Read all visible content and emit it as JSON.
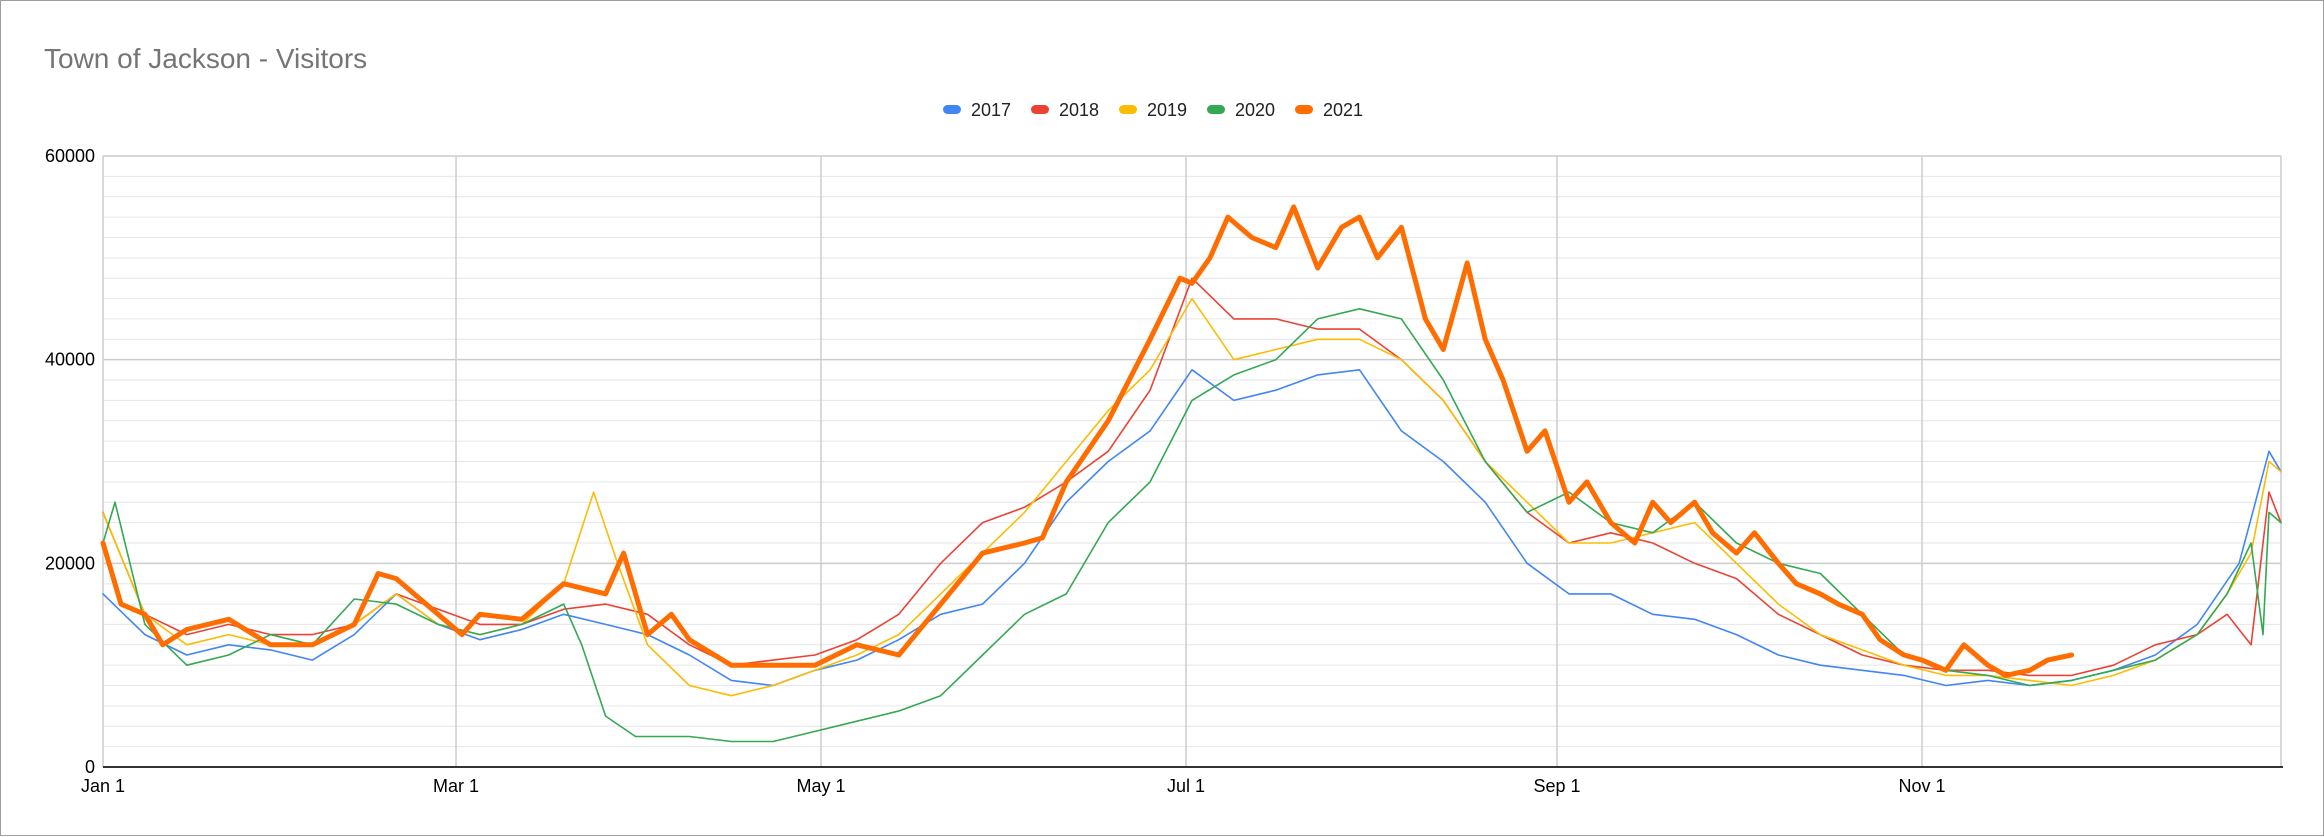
{
  "chart_data": {
    "type": "line",
    "title": "Town of Jackson - Visitors",
    "xlabel": "",
    "ylabel": "",
    "x_ticks": [
      "Jan 1",
      "Mar 1",
      "May 1",
      "Jul 1",
      "Sep 1",
      "Nov 1"
    ],
    "y_ticks": [
      "0",
      "20000",
      "40000",
      "60000"
    ],
    "ylim": [
      0,
      60000
    ],
    "xlim_day_of_year": [
      1,
      365
    ],
    "grid": true,
    "legend_position": "top",
    "series": [
      {
        "name": "2017",
        "color": "#4285f4",
        "stroke_width": 1.6,
        "points": [
          [
            1,
            17000
          ],
          [
            8,
            13000
          ],
          [
            15,
            11000
          ],
          [
            22,
            12000
          ],
          [
            29,
            11500
          ],
          [
            36,
            10500
          ],
          [
            43,
            13000
          ],
          [
            50,
            17000
          ],
          [
            57,
            14000
          ],
          [
            64,
            12500
          ],
          [
            71,
            13500
          ],
          [
            78,
            15000
          ],
          [
            85,
            14000
          ],
          [
            92,
            13000
          ],
          [
            99,
            11000
          ],
          [
            106,
            8500
          ],
          [
            113,
            8000
          ],
          [
            120,
            9500
          ],
          [
            127,
            10500
          ],
          [
            134,
            12500
          ],
          [
            141,
            15000
          ],
          [
            148,
            16000
          ],
          [
            155,
            20000
          ],
          [
            162,
            26000
          ],
          [
            169,
            30000
          ],
          [
            176,
            33000
          ],
          [
            183,
            39000
          ],
          [
            190,
            36000
          ],
          [
            197,
            37000
          ],
          [
            204,
            38500
          ],
          [
            211,
            39000
          ],
          [
            218,
            33000
          ],
          [
            225,
            30000
          ],
          [
            232,
            26000
          ],
          [
            239,
            20000
          ],
          [
            246,
            17000
          ],
          [
            253,
            17000
          ],
          [
            260,
            15000
          ],
          [
            267,
            14500
          ],
          [
            274,
            13000
          ],
          [
            281,
            11000
          ],
          [
            288,
            10000
          ],
          [
            295,
            9500
          ],
          [
            302,
            9000
          ],
          [
            309,
            8000
          ],
          [
            316,
            8500
          ],
          [
            323,
            8000
          ],
          [
            330,
            8500
          ],
          [
            337,
            9500
          ],
          [
            344,
            11000
          ],
          [
            351,
            14000
          ],
          [
            358,
            20000
          ],
          [
            363,
            31000
          ],
          [
            365,
            29000
          ]
        ]
      },
      {
        "name": "2018",
        "color": "#ea4335",
        "stroke_width": 1.6,
        "points": [
          [
            1,
            25000
          ],
          [
            8,
            15000
          ],
          [
            15,
            13000
          ],
          [
            22,
            14000
          ],
          [
            29,
            13000
          ],
          [
            36,
            13000
          ],
          [
            43,
            14000
          ],
          [
            50,
            17000
          ],
          [
            57,
            15500
          ],
          [
            64,
            14000
          ],
          [
            71,
            14000
          ],
          [
            78,
            15500
          ],
          [
            85,
            16000
          ],
          [
            92,
            15000
          ],
          [
            99,
            12000
          ],
          [
            106,
            10000
          ],
          [
            113,
            10500
          ],
          [
            120,
            11000
          ],
          [
            127,
            12500
          ],
          [
            134,
            15000
          ],
          [
            141,
            20000
          ],
          [
            148,
            24000
          ],
          [
            155,
            25500
          ],
          [
            162,
            28000
          ],
          [
            169,
            31000
          ],
          [
            176,
            37000
          ],
          [
            183,
            48000
          ],
          [
            190,
            44000
          ],
          [
            197,
            44000
          ],
          [
            204,
            43000
          ],
          [
            211,
            43000
          ],
          [
            218,
            40000
          ],
          [
            225,
            36000
          ],
          [
            232,
            30000
          ],
          [
            239,
            25000
          ],
          [
            246,
            22000
          ],
          [
            253,
            23000
          ],
          [
            260,
            22000
          ],
          [
            267,
            20000
          ],
          [
            274,
            18500
          ],
          [
            281,
            15000
          ],
          [
            288,
            13000
          ],
          [
            295,
            11000
          ],
          [
            302,
            10000
          ],
          [
            309,
            9500
          ],
          [
            316,
            9500
          ],
          [
            323,
            9000
          ],
          [
            330,
            9000
          ],
          [
            337,
            10000
          ],
          [
            344,
            12000
          ],
          [
            351,
            13000
          ],
          [
            356,
            15000
          ],
          [
            360,
            12000
          ],
          [
            363,
            27000
          ],
          [
            365,
            24000
          ]
        ]
      },
      {
        "name": "2019",
        "color": "#fbbc04",
        "stroke_width": 1.6,
        "points": [
          [
            1,
            25000
          ],
          [
            8,
            15000
          ],
          [
            15,
            12000
          ],
          [
            22,
            13000
          ],
          [
            29,
            12000
          ],
          [
            36,
            12000
          ],
          [
            43,
            14000
          ],
          [
            50,
            17000
          ],
          [
            57,
            14000
          ],
          [
            64,
            13000
          ],
          [
            71,
            14000
          ],
          [
            78,
            18000
          ],
          [
            83,
            27000
          ],
          [
            87,
            20000
          ],
          [
            92,
            12000
          ],
          [
            99,
            8000
          ],
          [
            106,
            7000
          ],
          [
            113,
            8000
          ],
          [
            120,
            9500
          ],
          [
            127,
            11000
          ],
          [
            134,
            13000
          ],
          [
            141,
            17000
          ],
          [
            148,
            21000
          ],
          [
            155,
            25000
          ],
          [
            162,
            30000
          ],
          [
            169,
            35000
          ],
          [
            176,
            39000
          ],
          [
            183,
            46000
          ],
          [
            190,
            40000
          ],
          [
            197,
            41000
          ],
          [
            204,
            42000
          ],
          [
            211,
            42000
          ],
          [
            218,
            40000
          ],
          [
            225,
            36000
          ],
          [
            232,
            30000
          ],
          [
            239,
            26000
          ],
          [
            246,
            22000
          ],
          [
            253,
            22000
          ],
          [
            260,
            23000
          ],
          [
            267,
            24000
          ],
          [
            274,
            20000
          ],
          [
            281,
            16000
          ],
          [
            288,
            13000
          ],
          [
            295,
            11500
          ],
          [
            302,
            10000
          ],
          [
            309,
            9000
          ],
          [
            316,
            9000
          ],
          [
            323,
            8500
          ],
          [
            330,
            8000
          ],
          [
            337,
            9000
          ],
          [
            344,
            10500
          ],
          [
            351,
            13000
          ],
          [
            356,
            17000
          ],
          [
            360,
            21000
          ],
          [
            363,
            30000
          ],
          [
            365,
            29000
          ]
        ]
      },
      {
        "name": "2020",
        "color": "#34a853",
        "stroke_width": 1.6,
        "points": [
          [
            1,
            22000
          ],
          [
            3,
            26000
          ],
          [
            8,
            14000
          ],
          [
            15,
            10000
          ],
          [
            22,
            11000
          ],
          [
            29,
            13000
          ],
          [
            36,
            12000
          ],
          [
            43,
            16500
          ],
          [
            50,
            16000
          ],
          [
            57,
            14000
          ],
          [
            64,
            13000
          ],
          [
            71,
            14000
          ],
          [
            78,
            16000
          ],
          [
            81,
            12000
          ],
          [
            85,
            5000
          ],
          [
            90,
            3000
          ],
          [
            99,
            3000
          ],
          [
            106,
            2500
          ],
          [
            113,
            2500
          ],
          [
            120,
            3500
          ],
          [
            127,
            4500
          ],
          [
            134,
            5500
          ],
          [
            141,
            7000
          ],
          [
            148,
            11000
          ],
          [
            155,
            15000
          ],
          [
            162,
            17000
          ],
          [
            169,
            24000
          ],
          [
            176,
            28000
          ],
          [
            183,
            36000
          ],
          [
            190,
            38500
          ],
          [
            197,
            40000
          ],
          [
            204,
            44000
          ],
          [
            211,
            45000
          ],
          [
            218,
            44000
          ],
          [
            225,
            38000
          ],
          [
            232,
            30000
          ],
          [
            239,
            25000
          ],
          [
            246,
            27000
          ],
          [
            253,
            24000
          ],
          [
            260,
            23000
          ],
          [
            267,
            26000
          ],
          [
            274,
            22000
          ],
          [
            281,
            20000
          ],
          [
            288,
            19000
          ],
          [
            295,
            15000
          ],
          [
            302,
            11000
          ],
          [
            309,
            9500
          ],
          [
            316,
            9000
          ],
          [
            323,
            8000
          ],
          [
            330,
            8500
          ],
          [
            337,
            9500
          ],
          [
            344,
            10500
          ],
          [
            351,
            13000
          ],
          [
            356,
            17000
          ],
          [
            360,
            22000
          ],
          [
            362,
            13000
          ],
          [
            363,
            25000
          ],
          [
            365,
            24000
          ]
        ]
      },
      {
        "name": "2021",
        "color": "#ff6d01",
        "stroke_width": 5,
        "points": [
          [
            1,
            22000
          ],
          [
            4,
            16000
          ],
          [
            8,
            15000
          ],
          [
            11,
            12000
          ],
          [
            15,
            13500
          ],
          [
            22,
            14500
          ],
          [
            29,
            12000
          ],
          [
            36,
            12000
          ],
          [
            43,
            14000
          ],
          [
            47,
            19000
          ],
          [
            50,
            18500
          ],
          [
            57,
            15000
          ],
          [
            61,
            13000
          ],
          [
            64,
            15000
          ],
          [
            71,
            14500
          ],
          [
            78,
            18000
          ],
          [
            85,
            17000
          ],
          [
            88,
            21000
          ],
          [
            92,
            13000
          ],
          [
            96,
            15000
          ],
          [
            99,
            12500
          ],
          [
            106,
            10000
          ],
          [
            113,
            10000
          ],
          [
            120,
            10000
          ],
          [
            127,
            12000
          ],
          [
            134,
            11000
          ],
          [
            141,
            16000
          ],
          [
            148,
            21000
          ],
          [
            155,
            22000
          ],
          [
            158,
            22500
          ],
          [
            162,
            28000
          ],
          [
            169,
            34000
          ],
          [
            176,
            42000
          ],
          [
            181,
            48000
          ],
          [
            183,
            47500
          ],
          [
            186,
            50000
          ],
          [
            189,
            54000
          ],
          [
            193,
            52000
          ],
          [
            197,
            51000
          ],
          [
            200,
            55000
          ],
          [
            204,
            49000
          ],
          [
            208,
            53000
          ],
          [
            211,
            54000
          ],
          [
            214,
            50000
          ],
          [
            218,
            53000
          ],
          [
            222,
            44000
          ],
          [
            225,
            41000
          ],
          [
            229,
            49500
          ],
          [
            232,
            42000
          ],
          [
            235,
            38000
          ],
          [
            239,
            31000
          ],
          [
            242,
            33000
          ],
          [
            246,
            26000
          ],
          [
            249,
            28000
          ],
          [
            253,
            24000
          ],
          [
            257,
            22000
          ],
          [
            260,
            26000
          ],
          [
            263,
            24000
          ],
          [
            267,
            26000
          ],
          [
            270,
            23000
          ],
          [
            274,
            21000
          ],
          [
            277,
            23000
          ],
          [
            281,
            20000
          ],
          [
            284,
            18000
          ],
          [
            288,
            17000
          ],
          [
            291,
            16000
          ],
          [
            295,
            15000
          ],
          [
            298,
            12500
          ],
          [
            302,
            11000
          ],
          [
            305,
            10500
          ],
          [
            309,
            9500
          ],
          [
            312,
            12000
          ],
          [
            316,
            10000
          ],
          [
            319,
            9000
          ],
          [
            323,
            9500
          ],
          [
            326,
            10500
          ],
          [
            330,
            11000
          ]
        ]
      }
    ]
  }
}
